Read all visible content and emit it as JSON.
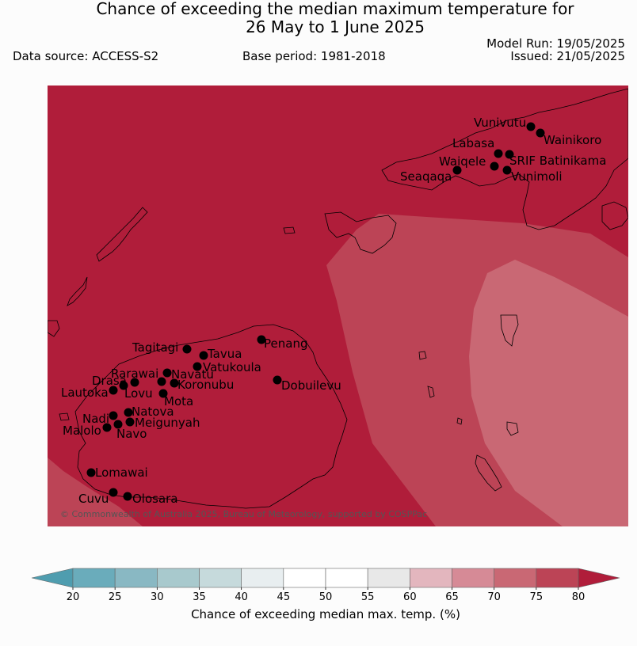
{
  "header": {
    "title_line1": "Chance of exceeding the median maximum temperature for",
    "title_line2": "26 May to 1 June 2025",
    "data_source": "Data source: ACCESS-S2",
    "base_period": "Base period: 1981-2018",
    "model_run": "Model Run: 19/05/2025",
    "issued": "Issued: 21/05/2025"
  },
  "map": {
    "copyright": "© Commonwealth of Australia 2025, Bureau of Meteorology, supported by COSPPac",
    "stations": [
      {
        "name": "Vunivutu"
      },
      {
        "name": "Wainikoro"
      },
      {
        "name": "Labasa"
      },
      {
        "name": "SRIF Batinikama"
      },
      {
        "name": "Waiqele"
      },
      {
        "name": "Seaqaqa"
      },
      {
        "name": "Vunimoli"
      },
      {
        "name": "Penang"
      },
      {
        "name": "Tagitagi"
      },
      {
        "name": "Tavua"
      },
      {
        "name": "Vatukoula"
      },
      {
        "name": "Rarawai"
      },
      {
        "name": "Navatu"
      },
      {
        "name": "Drasa"
      },
      {
        "name": "Koronubu"
      },
      {
        "name": "Lautoka"
      },
      {
        "name": "Lovu"
      },
      {
        "name": "Mota"
      },
      {
        "name": "Dobuilevu"
      },
      {
        "name": "Natova"
      },
      {
        "name": "Nadi"
      },
      {
        "name": "Meigunyah"
      },
      {
        "name": "Malolo"
      },
      {
        "name": "Navo"
      },
      {
        "name": "Lomawai"
      },
      {
        "name": "Cuvu"
      },
      {
        "name": "Olosara"
      }
    ]
  },
  "colorbar": {
    "title": "Chance of exceeding median max. temp. (%)",
    "ticks": [
      "20",
      "25",
      "30",
      "35",
      "40",
      "45",
      "50",
      "55",
      "60",
      "65",
      "70",
      "75",
      "80"
    ],
    "colors": [
      "#6aacbb",
      "#89b8c3",
      "#a8c9cd",
      "#c6dadc",
      "#e8eef0",
      "#ffffff",
      "#ffffff",
      "#e8e8e8",
      "#e3b6be",
      "#d68a96",
      "#c96874",
      "#bc4456"
    ],
    "under_color": "#4f9daf",
    "over_color": "#b01d3a"
  },
  "legend_colors": {
    "above_80": "#b01d3a",
    "band_75_80": "#bc4456",
    "band_70_75": "#c96874"
  }
}
